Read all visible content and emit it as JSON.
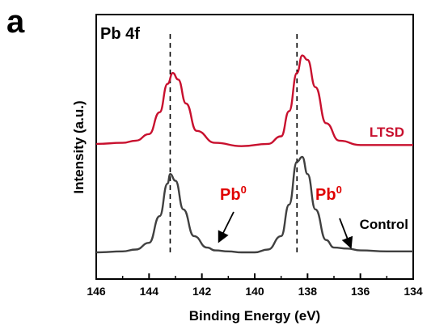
{
  "chart_data": {
    "type": "line",
    "panel_label": "a",
    "title": "Pb 4f",
    "xlabel": "Binding Energy (eV)",
    "ylabel": "Intensity (a.u.)",
    "xlim": [
      146,
      134
    ],
    "x_reversed": true,
    "x_ticks": [
      "146",
      "144",
      "142",
      "140",
      "138",
      "136",
      "134"
    ],
    "y_ticks": [],
    "grid": false,
    "reference_lines_x": [
      143.2,
      138.4
    ],
    "series": [
      {
        "name": "LTSD",
        "color": "#c8102e",
        "x": [
          146,
          145,
          144.5,
          144,
          143.6,
          143.3,
          143.1,
          142.9,
          142.6,
          142.2,
          141.5,
          140.5,
          139.5,
          139.0,
          138.7,
          138.4,
          138.2,
          138.0,
          137.7,
          137.3,
          136.8,
          136.0,
          135.0,
          134
        ],
        "y": [
          0.03,
          0.04,
          0.06,
          0.12,
          0.32,
          0.58,
          0.68,
          0.62,
          0.4,
          0.15,
          0.04,
          0.01,
          0.03,
          0.1,
          0.33,
          0.68,
          0.84,
          0.8,
          0.55,
          0.22,
          0.06,
          0.02,
          0.02,
          0.02
        ]
      },
      {
        "name": "Control",
        "color": "#404040",
        "x": [
          146,
          145,
          144.5,
          144,
          143.6,
          143.3,
          143.2,
          143.0,
          142.7,
          142.3,
          141.8,
          141.5,
          141.0,
          140.5,
          140.0,
          139.5,
          139.0,
          138.7,
          138.4,
          138.2,
          138.0,
          137.7,
          137.3,
          137.0,
          136.5,
          136.0,
          135.0,
          134
        ],
        "y": [
          0.0,
          0.01,
          0.03,
          0.1,
          0.38,
          0.72,
          0.82,
          0.75,
          0.45,
          0.17,
          0.05,
          0.02,
          0.01,
          0.0,
          0.0,
          0.03,
          0.17,
          0.5,
          0.95,
          1.0,
          0.82,
          0.45,
          0.13,
          0.05,
          0.04,
          0.02,
          0.01,
          0.01
        ]
      }
    ],
    "annotations": {
      "pb0_left": {
        "text": "Pb",
        "superscript": "0",
        "color": "#e00000"
      },
      "pb0_right": {
        "text": "Pb",
        "superscript": "0",
        "color": "#e00000"
      }
    }
  }
}
